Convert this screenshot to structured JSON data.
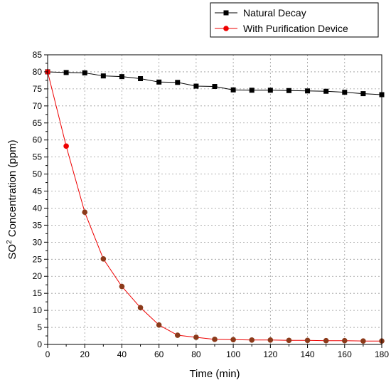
{
  "chart_data": {
    "type": "line",
    "xlabel": "Time (min)",
    "ylabel_main": "SO",
    "ylabel_sup": "2",
    "ylabel_rest": " Concentration (ppm)",
    "xlim": [
      0,
      180
    ],
    "ylim": [
      0,
      85
    ],
    "xticks": [
      0,
      20,
      40,
      60,
      80,
      100,
      120,
      140,
      160,
      180
    ],
    "yticks": [
      0,
      5,
      10,
      15,
      20,
      25,
      30,
      35,
      40,
      45,
      50,
      55,
      60,
      65,
      70,
      75,
      80,
      85
    ],
    "grid": true,
    "legend_position": "top-right",
    "x": [
      0,
      10,
      20,
      30,
      40,
      50,
      60,
      70,
      80,
      90,
      100,
      110,
      120,
      130,
      140,
      150,
      160,
      170,
      180
    ],
    "series": [
      {
        "name": "Natural Decay",
        "color": "#000000",
        "marker": "square",
        "values": [
          80,
          79.8,
          79.7,
          78.8,
          78.6,
          78.0,
          77.0,
          76.9,
          75.8,
          75.7,
          74.7,
          74.6,
          74.6,
          74.5,
          74.4,
          74.3,
          74.0,
          73.6,
          73.3
        ]
      },
      {
        "name": "With Purification Device",
        "color": "#ee0000",
        "marker": "circle",
        "values": [
          80,
          58.2,
          38.8,
          25.1,
          17.0,
          10.8,
          5.7,
          2.7,
          2.1,
          1.5,
          1.4,
          1.3,
          1.3,
          1.2,
          1.2,
          1.1,
          1.1,
          1.0,
          1.0
        ]
      }
    ]
  }
}
